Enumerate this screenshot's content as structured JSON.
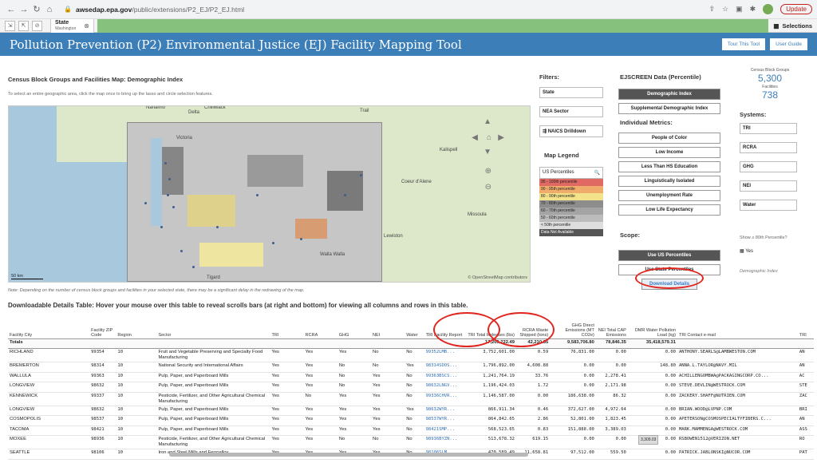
{
  "browser": {
    "url_host": "awsedap.epa.gov",
    "url_path": "/public/extensions/P2_EJ/P2_EJ.html",
    "update_label": "Update"
  },
  "qlik": {
    "tab_title": "State",
    "tab_value": "Washington",
    "selections_label": "Selections"
  },
  "header": {
    "title": "Pollution Prevention (P2) Environmental Justice (EJ) Facility Mapping Tool",
    "tour_label": "Tour This Tool",
    "guide_label": "User Guide"
  },
  "map": {
    "title": "Census Block Groups and Facilities Map: Demographic Index",
    "instructions": "To select an entire geographic area, click the map once to bring up the lasso and circle selection features.",
    "labels": [
      "Nanaimo",
      "Chilliwack",
      "Delta",
      "Trail",
      "Victoria",
      "Kalispell",
      "Coeur d'Alene",
      "Missoula",
      "Walla Walla",
      "Tigard",
      "Lewiston"
    ],
    "scale": "50 km",
    "attribution": "© OpenStreetMap contributors",
    "delay_note": "Note: Depending on the number of census block groups and facilities in your selected state, there may be a significant delay in the redrawing of the map."
  },
  "filters": {
    "heading": "Filters:",
    "state_label": "State",
    "nea_label": "NEA Sector",
    "naics_label": "NAICS Drilldown"
  },
  "legend": {
    "heading": "Map Legend",
    "search_label": "US Percentiles",
    "rows": [
      {
        "label": "95 - 100th percentile",
        "color": "#e06a63"
      },
      {
        "label": "90 - 95th percentile",
        "color": "#f0ac6a"
      },
      {
        "label": "80 - 90th percentile",
        "color": "#f2e38a"
      },
      {
        "label": "70 - 80th percentile",
        "color": "#8d8d8d"
      },
      {
        "label": "60 - 70th percentile",
        "color": "#a4a4a4"
      },
      {
        "label": "50 - 60th percentile",
        "color": "#bcbcbc"
      },
      {
        "label": "< 50th percentile",
        "color": "#dedede"
      },
      {
        "label": "Data Not Available",
        "color": "#555555"
      }
    ]
  },
  "ejscreen": {
    "heading": "EJSCREEN Data (Percentile)",
    "demo_index": "Demographic Index",
    "supp_index": "Supplemental Demographic Index",
    "metrics_heading": "Individual Metrics:",
    "metrics": [
      "People of Color",
      "Low Income",
      "Less Than HS Education",
      "Linguistically Isolated",
      "Unemployment Rate",
      "Low Life Expectancy"
    ],
    "scope_heading": "Scope:",
    "use_us": "Use US Percentiles",
    "use_state": "Use State Percentiles",
    "download": "Download Details"
  },
  "kpis": {
    "cbg_label": "Census Block Groups",
    "cbg_value": "5,300",
    "fac_label": "Facilities",
    "fac_value": "738"
  },
  "systems": {
    "heading": "Systems:",
    "items": [
      "TRI",
      "RCRA",
      "GHG",
      "NEI",
      "Water"
    ],
    "show80": "Show ≥ 80th Percentile?",
    "yes": "Yes",
    "demo_footer": "Demographic Index"
  },
  "table": {
    "heading": "Downloadable Details Table: Hover your mouse over this table to reveal scrolls bars (at right and bottom) for viewing all columns and rows in this table.",
    "columns": [
      "Facility City",
      "Facility ZIP Code",
      "Region",
      "Sector",
      "TRI",
      "RCRA",
      "GHG",
      "NEI",
      "Water",
      "TRI Facility Report",
      "TRI Total Releases (lbs)",
      "RCRA Waste Shipped (tons)",
      "GHG Direct Emissions (MT CO2e)",
      "NEI Total CAP Emissions",
      "DMR Water Pollution Load (kg)",
      "TRI Contact e-mail",
      "TRI"
    ],
    "totals": {
      "label": "Totals",
      "rel": "17,205,222.49",
      "rcra": "42,210.65",
      "ghg": "9,583,706.80",
      "nei": "78,846.35",
      "dmr": "35,418,579.31"
    },
    "rows": [
      {
        "city": "RICHLAND",
        "zip": "99354",
        "reg": "10",
        "sector": "Fruit and Vegetable Preserving and Specialty Food Manufacturing",
        "tri": "Yes",
        "rcra": "Yes",
        "ghg": "Yes",
        "nei": "No",
        "water": "No",
        "rep": "99352LMB...",
        "rel": "3,752,601.00",
        "rcraw": "0.59",
        "ghgd": "76,831.00",
        "neit": "0.00",
        "dmr": "0.00",
        "email": "ANTHONY.SEARLS@LAMBWESTON.COM",
        "tri2": "AN"
      },
      {
        "city": "BREMERTON",
        "zip": "98314",
        "reg": "10",
        "sector": "National Security and International Affairs",
        "tri": "Yes",
        "rcra": "Yes",
        "ghg": "No",
        "nei": "No",
        "water": "Yes",
        "rep": "98314SDOS...",
        "rel": "1,796,892.00",
        "rcraw": "4,608.88",
        "ghgd": "0.00",
        "neit": "0.00",
        "dmr": "148.80",
        "email": "ANNA.L.TAYLOR@NAVY.MIL",
        "tri2": "AN"
      },
      {
        "city": "WALLULA",
        "zip": "99363",
        "reg": "10",
        "sector": "Pulp, Paper, and Paperboard Mills",
        "tri": "Yes",
        "rcra": "Yes",
        "ghg": "No",
        "nei": "Yes",
        "water": "No",
        "rep": "99363BSCS...",
        "rel": "1,241,764.19",
        "rcraw": "33.76",
        "ghgd": "0.00",
        "neit": "2,278.41",
        "dmr": "0.00",
        "email": "ACHILLENGOMBWA@PACKAGINGCORP.CO...",
        "tri2": "AC"
      },
      {
        "city": "LONGVIEW",
        "zip": "98632",
        "reg": "10",
        "sector": "Pulp, Paper, and Paperboard Mills",
        "tri": "Yes",
        "rcra": "Yes",
        "ghg": "No",
        "nei": "Yes",
        "water": "No",
        "rep": "98632LNGV...",
        "rel": "1,196,424.03",
        "rcraw": "1.72",
        "ghgd": "0.00",
        "neit": "2,171.98",
        "dmr": "0.00",
        "email": "STEVE.DEVLIN@WESTROCK.COM",
        "tri2": "STE"
      },
      {
        "city": "KENNEWICK",
        "zip": "99337",
        "reg": "10",
        "sector": "Pesticide, Fertilizer, and Other Agricultural Chemical Manufacturing",
        "tri": "Yes",
        "rcra": "No",
        "ghg": "Yes",
        "nei": "Yes",
        "water": "No",
        "rep": "99336CHVR...",
        "rel": "1,146,587.00",
        "rcraw": "0.00",
        "ghgd": "186,638.00",
        "neit": "86.32",
        "dmr": "0.00",
        "email": "ZACKERY.SHAFF@NUTRIEN.COM",
        "tri2": "ZAC"
      },
      {
        "city": "LONGVIEW",
        "zip": "98632",
        "reg": "10",
        "sector": "Pulp, Paper, and Paperboard Mills",
        "tri": "Yes",
        "rcra": "Yes",
        "ghg": "Yes",
        "nei": "Yes",
        "water": "Yes",
        "rep": "98632WYR...",
        "rel": "866,911.34",
        "rcraw": "0.46",
        "ghgd": "372,627.00",
        "neit": "4,972.64",
        "dmr": "0.00",
        "email": "BRIAN.WOOD@LVPNP.COM",
        "tri2": "BRI"
      },
      {
        "city": "COSMOPOLIS",
        "zip": "98537",
        "reg": "10",
        "sector": "Pulp, Paper, and Paperboard Mills",
        "tri": "Yes",
        "rcra": "Yes",
        "ghg": "Yes",
        "nei": "Yes",
        "water": "No",
        "rep": "98537WYR...",
        "rel": "864,842.65",
        "rcraw": "2.86",
        "ghgd": "52,801.00",
        "neit": "1,823.45",
        "dmr": "0.00",
        "email": "APETERSON@COSMOSPECIALTYFIBERS.C...",
        "tri2": "AN"
      },
      {
        "city": "TACOMA",
        "zip": "98421",
        "reg": "10",
        "sector": "Pulp, Paper, and Paperboard Mills",
        "tri": "Yes",
        "rcra": "Yes",
        "ghg": "Yes",
        "nei": "Yes",
        "water": "No",
        "rep": "98421SMP...",
        "rel": "568,523.65",
        "rcraw": "0.83",
        "ghgd": "151,888.00",
        "neit": "3,389.03",
        "dmr": "0.00",
        "email": "MARK.MAMMENGA@WESTROCK.COM",
        "tri2": "ASS"
      },
      {
        "city": "MOXEE",
        "zip": "98936",
        "reg": "10",
        "sector": "Pesticide, Fertilizer, and Other Agricultural Chemical Manufacturing",
        "tri": "Yes",
        "rcra": "Yes",
        "ghg": "No",
        "nei": "No",
        "water": "No",
        "rep": "98936BYZN...",
        "rel": "513,678.32",
        "rcraw": "619.15",
        "ghgd": "0.00",
        "neit": "0.00",
        "dmr": "0.00",
        "email": "RSBOWEN1512@VERIZON.NET",
        "tri2": "RO"
      },
      {
        "city": "SEATTLE",
        "zip": "98106",
        "reg": "10",
        "sector": "Iron and Steel Mills and Ferroalloy",
        "tri": "Yes",
        "rcra": "Yes",
        "ghg": "Yes",
        "nei": "Yes",
        "water": "No",
        "rep": "98106SLM...",
        "rel": "470,589.49",
        "rcraw": "11,658.81",
        "ghgd": "97,512.00",
        "neit": "559.50",
        "dmr": "0.00",
        "email": "PATRICK.JABLONSKI@NUCOR.COM",
        "tri2": "PAT"
      }
    ],
    "tooltip": "3,309.03"
  }
}
